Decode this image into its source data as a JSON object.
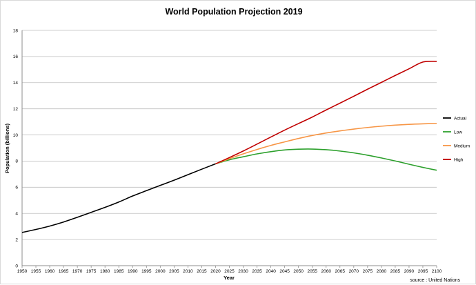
{
  "chart_data": {
    "type": "line",
    "title": "World Population Projection 2019",
    "xlabel": "Year",
    "ylabel": "Population (billions)",
    "source": "source : United Nations",
    "xlim": [
      1950,
      2100
    ],
    "ylim": [
      0,
      18
    ],
    "x_ticks": [
      1950,
      1955,
      1960,
      1965,
      1970,
      1975,
      1980,
      1985,
      1990,
      1995,
      2000,
      2005,
      2010,
      2015,
      2020,
      2025,
      2030,
      2035,
      2040,
      2045,
      2050,
      2055,
      2060,
      2065,
      2070,
      2075,
      2080,
      2085,
      2090,
      2095,
      2100
    ],
    "y_ticks": [
      0,
      2,
      4,
      6,
      8,
      10,
      12,
      14,
      16,
      18
    ],
    "grid": "horizontal",
    "legend": "right",
    "series": [
      {
        "name": "Actual",
        "color": "#000000",
        "x": [
          1950,
          1955,
          1960,
          1965,
          1970,
          1975,
          1980,
          1985,
          1990,
          1995,
          2000,
          2005,
          2010,
          2015,
          2020
        ],
        "values": [
          2.54,
          2.77,
          3.03,
          3.34,
          3.7,
          4.08,
          4.46,
          4.87,
          5.33,
          5.74,
          6.14,
          6.54,
          6.96,
          7.38,
          7.79
        ]
      },
      {
        "name": "Low",
        "color": "#2ca02c",
        "x": [
          2020,
          2025,
          2030,
          2035,
          2040,
          2045,
          2050,
          2055,
          2060,
          2065,
          2070,
          2075,
          2080,
          2085,
          2090,
          2095,
          2100
        ],
        "values": [
          7.79,
          8.1,
          8.33,
          8.55,
          8.72,
          8.85,
          8.91,
          8.92,
          8.87,
          8.77,
          8.63,
          8.45,
          8.24,
          8.01,
          7.76,
          7.52,
          7.3
        ]
      },
      {
        "name": "Medium",
        "color": "#f79646",
        "x": [
          2020,
          2025,
          2030,
          2035,
          2040,
          2045,
          2050,
          2055,
          2060,
          2065,
          2070,
          2075,
          2080,
          2085,
          2090,
          2095,
          2100
        ],
        "values": [
          7.79,
          8.18,
          8.55,
          8.89,
          9.2,
          9.47,
          9.73,
          9.96,
          10.15,
          10.31,
          10.45,
          10.57,
          10.67,
          10.75,
          10.81,
          10.85,
          10.88
        ]
      },
      {
        "name": "High",
        "color": "#c00000",
        "x": [
          2020,
          2025,
          2030,
          2035,
          2040,
          2045,
          2050,
          2055,
          2060,
          2065,
          2070,
          2075,
          2080,
          2085,
          2090,
          2095,
          2100
        ],
        "values": [
          7.79,
          8.27,
          8.77,
          9.3,
          9.84,
          10.37,
          10.87,
          11.37,
          11.91,
          12.43,
          12.96,
          13.5,
          14.02,
          14.55,
          15.06,
          15.58,
          15.63
        ]
      }
    ]
  }
}
